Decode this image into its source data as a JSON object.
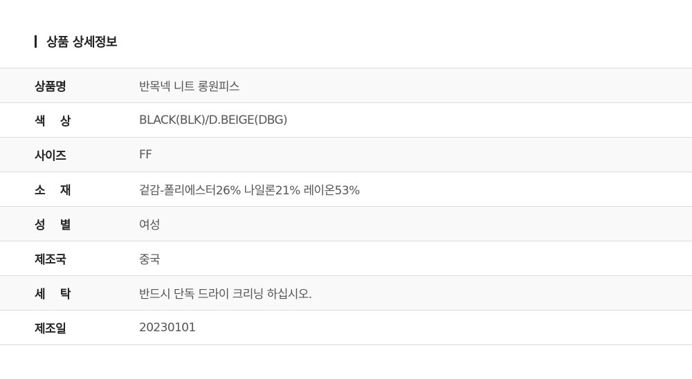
{
  "section_title": "상품 상세정보",
  "rows": [
    {
      "label": "상품명",
      "value": "반목넥 니트 롱원피스"
    },
    {
      "label": "색 상",
      "value": "BLACK(BLK)/D.BEIGE(DBG)"
    },
    {
      "label": "사이즈",
      "value": "FF"
    },
    {
      "label": "소 재",
      "value": "겉감-폴리에스터26% 나일론21% 레이온53%"
    },
    {
      "label": "성 별",
      "value": "여성"
    },
    {
      "label": "제조국",
      "value": "중국"
    },
    {
      "label": "세 탁",
      "value": "반드시 단독 드라이 크리닝 하십시오."
    },
    {
      "label": "제조일",
      "value": "20230101"
    }
  ]
}
